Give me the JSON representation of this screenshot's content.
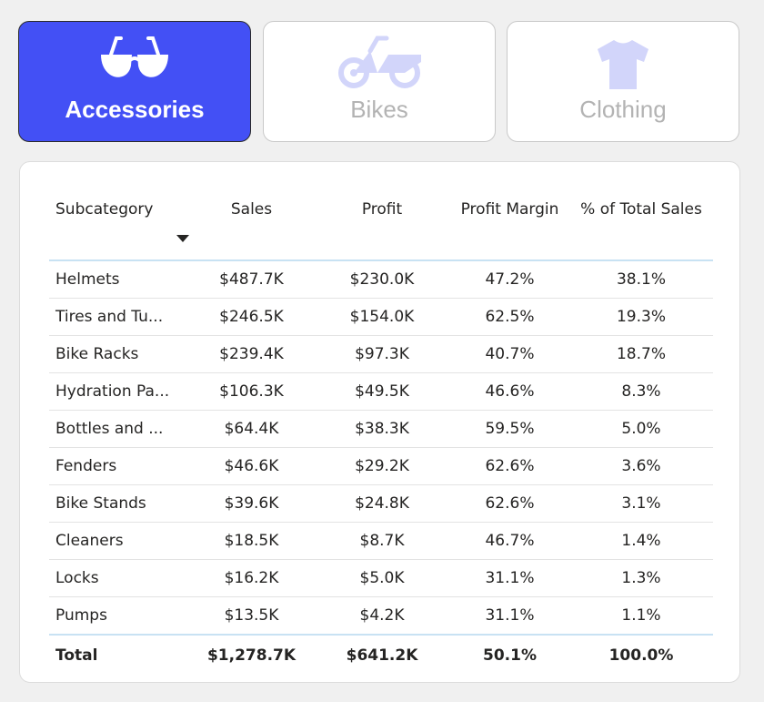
{
  "tabs": [
    {
      "label": "Accessories",
      "icon": "sunglasses-icon",
      "active": true
    },
    {
      "label": "Bikes",
      "icon": "bike-icon",
      "active": false
    },
    {
      "label": "Clothing",
      "icon": "tshirt-icon",
      "active": false
    }
  ],
  "colors": {
    "active_tab": "#4350f5",
    "inactive_icon": "#d2d5fa",
    "header_rule": "#c8e2f3"
  },
  "table": {
    "columns": [
      "Subcategory",
      "Sales",
      "Profit",
      "Profit Margin",
      "% of Total Sales"
    ],
    "rows": [
      [
        "Helmets",
        "$487.7K",
        "$230.0K",
        "47.2%",
        "38.1%"
      ],
      [
        "Tires and Tu...",
        "$246.5K",
        "$154.0K",
        "62.5%",
        "19.3%"
      ],
      [
        "Bike Racks",
        "$239.4K",
        "$97.3K",
        "40.7%",
        "18.7%"
      ],
      [
        "Hydration Pa...",
        "$106.3K",
        "$49.5K",
        "46.6%",
        "8.3%"
      ],
      [
        "Bottles and ...",
        "$64.4K",
        "$38.3K",
        "59.5%",
        "5.0%"
      ],
      [
        "Fenders",
        "$46.6K",
        "$29.2K",
        "62.6%",
        "3.6%"
      ],
      [
        "Bike Stands",
        "$39.6K",
        "$24.8K",
        "62.6%",
        "3.1%"
      ],
      [
        "Cleaners",
        "$18.5K",
        "$8.7K",
        "46.7%",
        "1.4%"
      ],
      [
        "Locks",
        "$16.2K",
        "$5.0K",
        "31.1%",
        "1.3%"
      ],
      [
        "Pumps",
        "$13.5K",
        "$4.2K",
        "31.1%",
        "1.1%"
      ]
    ],
    "total": [
      "Total",
      "$1,278.7K",
      "$641.2K",
      "50.1%",
      "100.0%"
    ]
  }
}
